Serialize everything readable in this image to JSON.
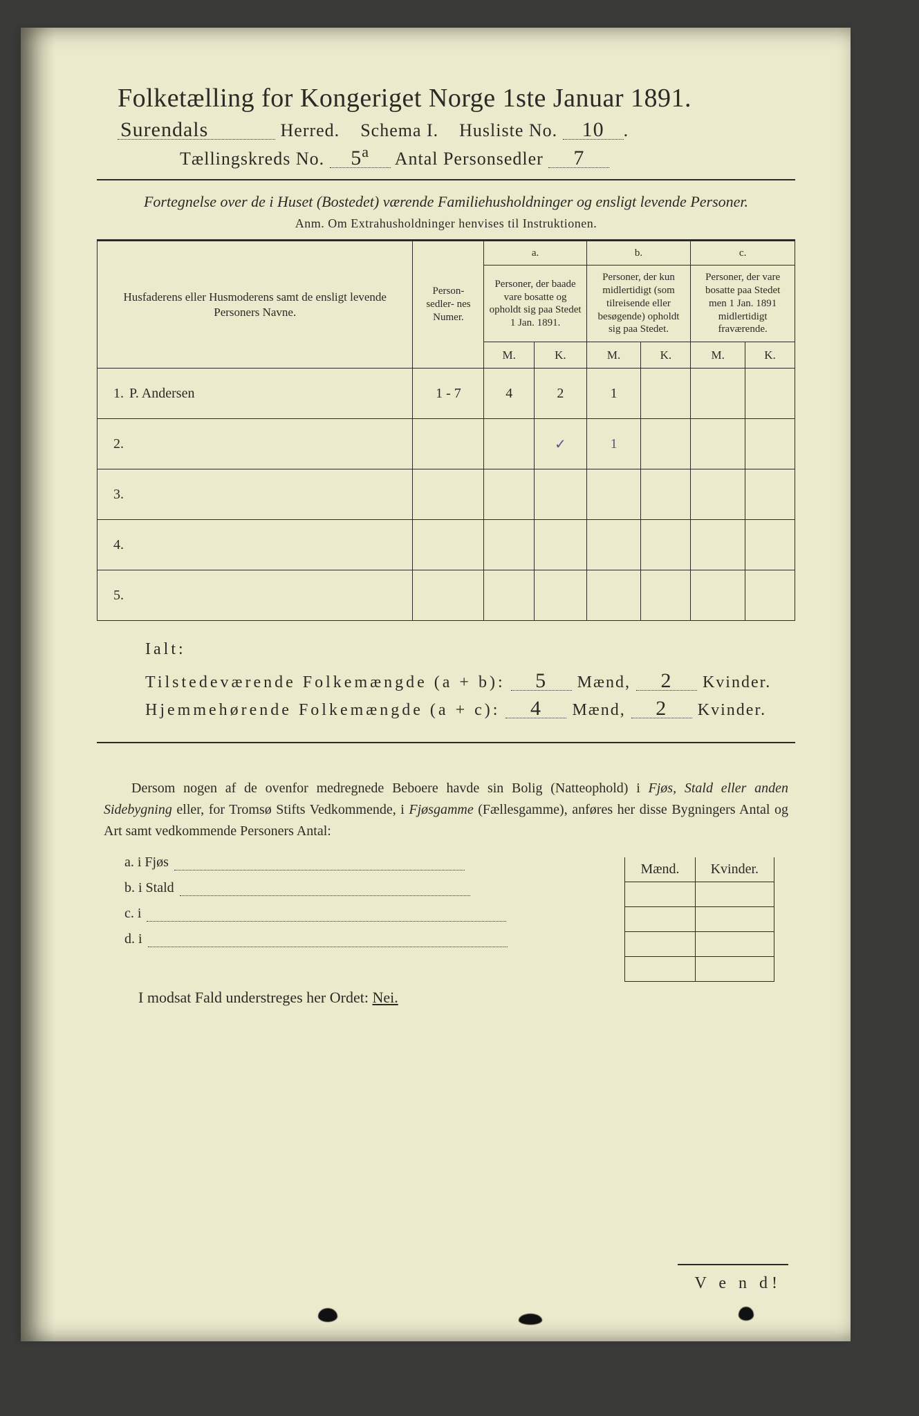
{
  "header": {
    "title": "Folketælling for Kongeriget Norge 1ste Januar 1891.",
    "herred_hand": "Surendals",
    "herred_label": "Herred.",
    "schema_label": "Schema I.",
    "husliste_label": "Husliste No.",
    "husliste_no": "10",
    "kreds_label_pre": "Tællingskreds No.",
    "kreds_no": "5",
    "kreds_suffix": "a",
    "antal_label": "Antal Personsedler",
    "antal_no": "7"
  },
  "intro": {
    "italic": "Fortegnelse over de i Huset (Bostedet) værende Familiehusholdninger og ensligt levende Personer.",
    "anm": "Anm.  Om Extrahusholdninger henvises til Instruktionen."
  },
  "table": {
    "col_name": "Husfaderens eller Husmoderens samt de ensligt levende Personers Navne.",
    "col_numer": "Person-\nsedler-\nnes\nNumer.",
    "col_a_head": "a.",
    "col_a_sub": "Personer, der baade vare bosatte og opholdt sig paa Stedet 1 Jan. 1891.",
    "col_b_head": "b.",
    "col_b_sub": "Personer, der kun midlertidigt (som tilreisende eller besøgende) opholdt sig paa Stedet.",
    "col_c_head": "c.",
    "col_c_sub": "Personer, der vare bosatte paa Stedet men 1 Jan. 1891 midlertidigt fraværende.",
    "mk_m": "M.",
    "mk_k": "K.",
    "rows": [
      {
        "n": "1",
        "name": "P. Andersen",
        "numer": "1 - 7",
        "aM": "4",
        "aK": "2",
        "bM": "1",
        "bK": "",
        "cM": "",
        "cK": ""
      },
      {
        "n": "2",
        "name": "",
        "numer": "",
        "aM": "",
        "aK": "✓",
        "bM": "1",
        "bK": "",
        "cM": "",
        "cK": "",
        "purple": true
      },
      {
        "n": "3",
        "name": "",
        "numer": "",
        "aM": "",
        "aK": "",
        "bM": "",
        "bK": "",
        "cM": "",
        "cK": ""
      },
      {
        "n": "4",
        "name": "",
        "numer": "",
        "aM": "",
        "aK": "",
        "bM": "",
        "bK": "",
        "cM": "",
        "cK": ""
      },
      {
        "n": "5",
        "name": "",
        "numer": "",
        "aM": "",
        "aK": "",
        "bM": "",
        "bK": "",
        "cM": "",
        "cK": ""
      }
    ]
  },
  "totals": {
    "ialt": "Ialt:",
    "line1_label": "Tilstedeværende Folkemængde (a + b):",
    "line1_m": "5",
    "line1_k": "2",
    "line2_label": "Hjemmehørende Folkemængde (a + c):",
    "line2_m": "4",
    "line2_k": "2",
    "maend": "Mænd,",
    "kvinder": "Kvinder."
  },
  "para": "Dersom nogen af de ovenfor medregnede Beboere havde sin Bolig (Natteophold) i Fjøs, Stald eller anden Sidebygning eller, for Tromsø Stifts Vedkommende, i Fjøsgamme (Fællesgamme), anføres her disse Bygningers Antal og Art samt vedkommende Personers Antal:",
  "side_table": {
    "m": "Mænd.",
    "k": "Kvinder."
  },
  "side_list": {
    "a": "a.  i     Fjøs",
    "b": "b.  i     Stald",
    "c": "c.  i",
    "d": "d.  i"
  },
  "nei": {
    "text": "I modsat Fald understreges her Ordet:",
    "word": "Nei."
  },
  "vend": "V e n d!",
  "colors": {
    "paper": "#eceacc",
    "ink": "#2a2a26",
    "pencil_purple": "#6b4a8a",
    "background": "#3a3a38"
  },
  "typography": {
    "title_fontsize_pt": 28,
    "body_fontsize_pt": 16,
    "table_header_fontsize_pt": 13,
    "handwriting_font": "cursive"
  }
}
